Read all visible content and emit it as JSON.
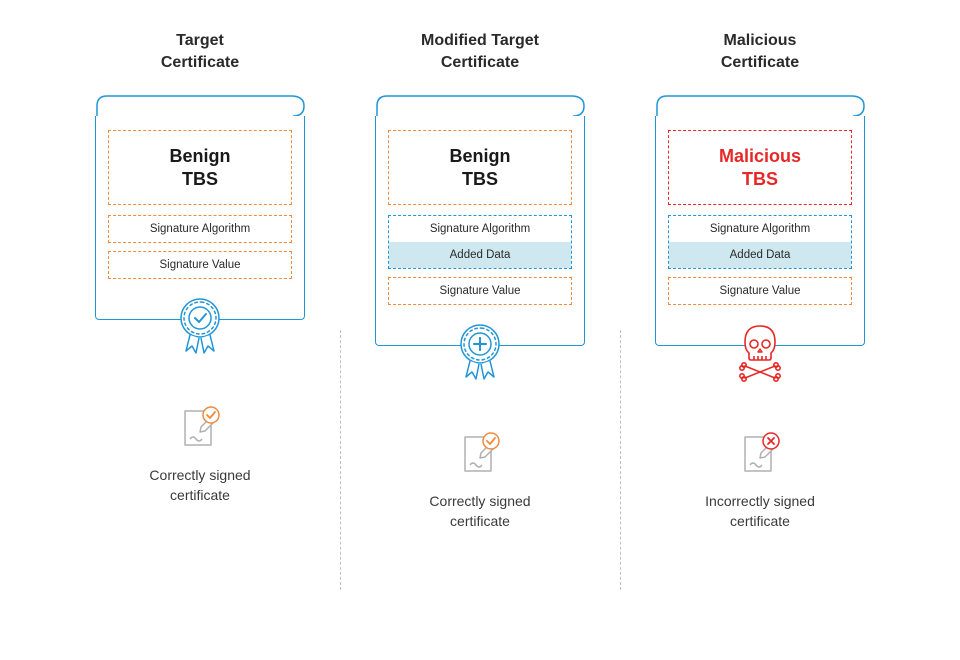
{
  "columns": [
    {
      "title": "Target\nCertificate",
      "tbs": {
        "label": "Benign\nTBS",
        "malicious": false
      },
      "rows": [
        {
          "type": "single",
          "label": "Signature Algorithm"
        },
        {
          "type": "single",
          "label": "Signature Value"
        }
      ],
      "seal": "check",
      "caption": "Correctly signed\ncertificate",
      "footer_status": "valid"
    },
    {
      "title": "Modified Target\nCertificate",
      "tbs": {
        "label": "Benign\nTBS",
        "malicious": false
      },
      "rows": [
        {
          "type": "combined",
          "top": "Signature Algorithm",
          "added": "Added Data"
        },
        {
          "type": "single",
          "label": "Signature Value"
        }
      ],
      "seal": "plus",
      "caption": "Correctly signed\ncertificate",
      "footer_status": "valid"
    },
    {
      "title": "Malicious\nCertificate",
      "tbs": {
        "label": "Malicious\nTBS",
        "malicious": true
      },
      "rows": [
        {
          "type": "combined",
          "top": "Signature Algorithm",
          "added": "Added Data"
        },
        {
          "type": "single",
          "label": "Signature Value"
        }
      ],
      "seal": "skull",
      "caption": "Incorrectly signed\ncertificate",
      "footer_status": "invalid"
    }
  ],
  "colors": {
    "cert_border": "#2196d6",
    "orange_dash": "#f08a3c",
    "blue_dash": "#2196d6",
    "added_bg": "#cfe8ef",
    "danger": "#e82727",
    "text": "#2a2a2a",
    "divider": "#c0c0c0",
    "icon_gray": "#b0b0b0"
  }
}
